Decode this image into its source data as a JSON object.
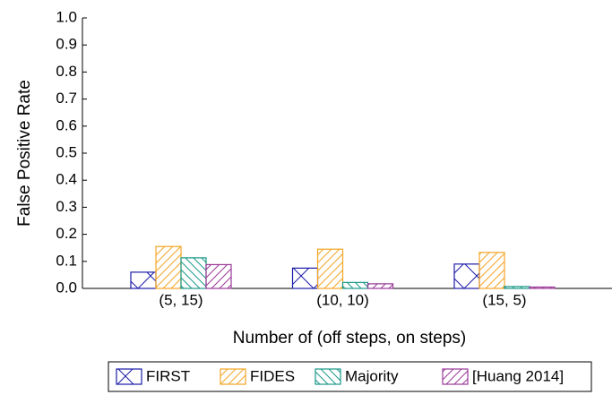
{
  "chart_data": {
    "type": "bar",
    "x_label": "Number of (off steps, on steps)",
    "y_label": "False Positive Rate",
    "categories": [
      "(5, 15)",
      "(10, 10)",
      "(15, 5)"
    ],
    "series": [
      {
        "name": "FIRST",
        "color": "#1c1ca8",
        "hatch": "x",
        "values": [
          0.06,
          0.075,
          0.09
        ]
      },
      {
        "name": "FIDES",
        "color": "#f2a524",
        "hatch": "/",
        "values": [
          0.155,
          0.145,
          0.133
        ]
      },
      {
        "name": "Majority",
        "color": "#1a9888",
        "hatch": "\\",
        "values": [
          0.113,
          0.022,
          0.007
        ]
      },
      {
        "name": "[Huang 2014]",
        "color": "#9a3a98",
        "hatch": "/",
        "values": [
          0.088,
          0.017,
          0.005
        ]
      }
    ],
    "ylim": [
      0,
      1
    ],
    "yticks": [
      {
        "value": 0,
        "label": "0.0"
      },
      {
        "value": 0.1,
        "label": "0.1"
      },
      {
        "value": 0.2,
        "label": "0.2"
      },
      {
        "value": 0.3,
        "label": "0.3"
      },
      {
        "value": 0.4,
        "label": "0.4"
      },
      {
        "value": 0.5,
        "label": "0.5"
      },
      {
        "value": 0.6,
        "label": "0.6"
      },
      {
        "value": 0.7,
        "label": "0.7"
      },
      {
        "value": 0.8,
        "label": "0.8"
      },
      {
        "value": 0.9,
        "label": "0.9"
      },
      {
        "value": 1,
        "label": "1.0"
      }
    ],
    "legend": "bottom"
  }
}
